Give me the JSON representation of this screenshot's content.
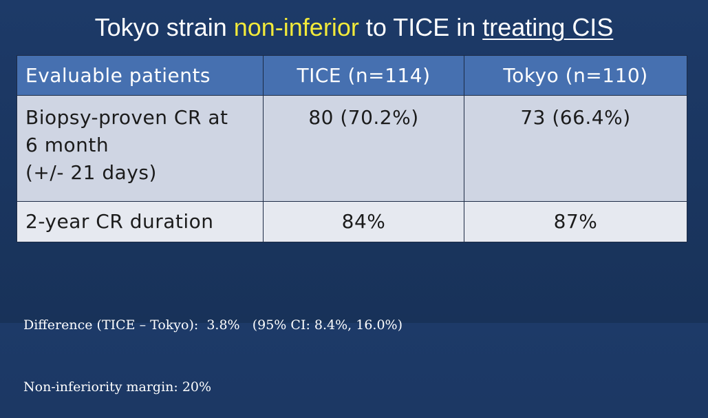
{
  "title": {
    "part1": "Tokyo strain ",
    "highlight": "non-inferior",
    "part2": " to TICE in ",
    "underlined": "treating CIS"
  },
  "table": {
    "headers": [
      "Evaluable patients",
      "TICE  (n=114)",
      "Tokyo  (n=110)"
    ],
    "rows": [
      {
        "label_lines": [
          "Biopsy-proven CR at",
          "6 month",
          "(+/- 21 days)"
        ],
        "tice": "80 (70.2%)",
        "tokyo": "73 (66.4%)"
      },
      {
        "label": "2-year CR duration",
        "tice": "84%",
        "tokyo": "87%"
      }
    ]
  },
  "footnotes": {
    "difference": "Difference (TICE – Tokyo):  3.8%   (95% CI: 8.4%, 16.0%)",
    "margin": "Non-inferiority margin: 20%"
  },
  "colors": {
    "background": "#1a3561",
    "header_fill": "#4670b0",
    "row_fill": "#cfd5e3",
    "row_alt_fill": "#e6e9f0",
    "highlight_text": "#f2ea3a"
  }
}
